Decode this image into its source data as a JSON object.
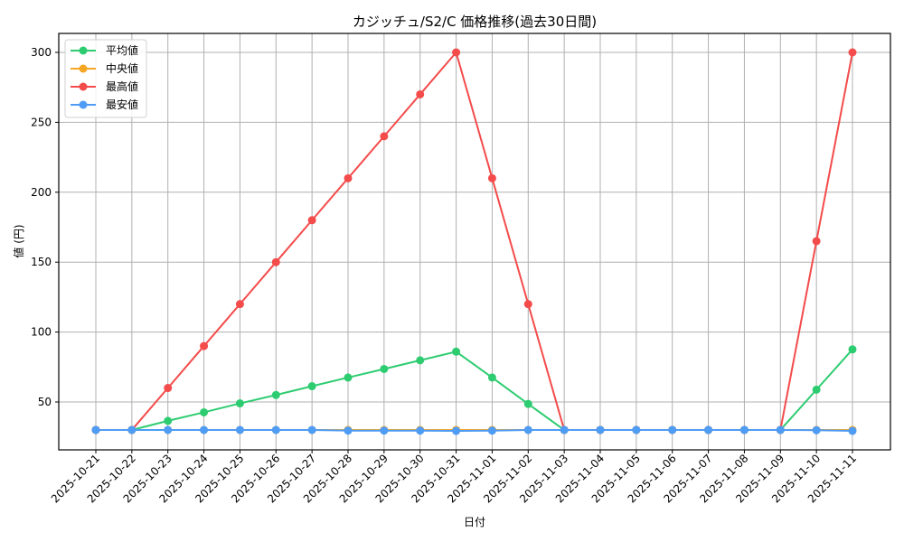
{
  "chart_data": {
    "type": "line",
    "title": "カジッチュ/S2/C 価格推移(過去30日間)",
    "xlabel": "日付",
    "ylabel": "値 (円)",
    "ylim": [
      15,
      312
    ],
    "yticks": [
      50,
      100,
      150,
      200,
      250,
      300
    ],
    "grid": true,
    "legend_position": "upper left",
    "categories": [
      "2025-10-21",
      "2025-10-22",
      "2025-10-23",
      "2025-10-24",
      "2025-10-25",
      "2025-10-26",
      "2025-10-27",
      "2025-10-28",
      "2025-10-29",
      "2025-10-30",
      "2025-10-31",
      "2025-11-01",
      "2025-11-02",
      "2025-11-03",
      "2025-11-04",
      "2025-11-05",
      "2025-11-06",
      "2025-11-07",
      "2025-11-08",
      "2025-11-09",
      "2025-11-10",
      "2025-11-11"
    ],
    "series": [
      {
        "name": "平均値",
        "color": "#2ecc71",
        "values": [
          30,
          30,
          36.5,
          42.6,
          49,
          55,
          61.3,
          67.5,
          73.6,
          79.8,
          86,
          67.5,
          48.6,
          30,
          30,
          30,
          30,
          30,
          30,
          30,
          58.8,
          87.6
        ]
      },
      {
        "name": "中央値",
        "color": "#f5a623",
        "values": [
          30,
          30,
          30,
          30,
          30,
          30,
          30,
          30,
          30,
          30,
          30,
          30,
          30,
          30,
          30,
          30,
          30,
          30,
          30,
          30,
          30,
          30
        ]
      },
      {
        "name": "最高値",
        "color": "#f44b4b",
        "values": [
          30,
          30,
          60,
          90,
          120,
          150,
          180,
          210,
          240,
          270,
          300,
          210,
          120,
          30,
          30,
          30,
          30,
          30,
          30,
          30,
          165,
          300
        ]
      },
      {
        "name": "最安値",
        "color": "#4f9cf5",
        "values": [
          30,
          30,
          30,
          30,
          30,
          30,
          30,
          29.5,
          29.5,
          29.5,
          29.3,
          29.5,
          30,
          30,
          30,
          30,
          30,
          30,
          30,
          30,
          29.8,
          29.3
        ]
      }
    ]
  }
}
